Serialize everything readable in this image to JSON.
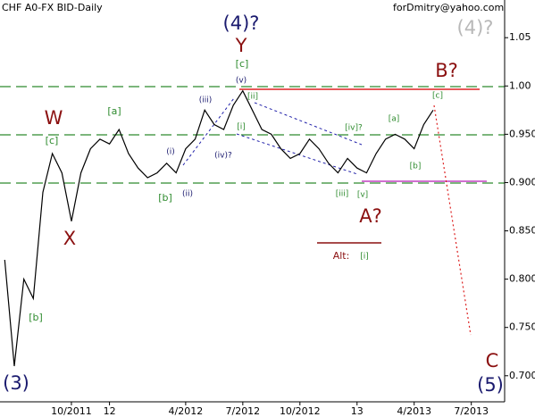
{
  "chart_data": {
    "type": "line",
    "title": "CHF A0-FX BID-Daily",
    "subtitle": "forDmitry@yahoo.com",
    "categories": [
      null,
      null,
      null,
      null,
      null,
      null,
      null,
      "10/2011",
      null,
      null,
      null,
      "12",
      null,
      null,
      null,
      null,
      null,
      null,
      null,
      "4/2012",
      null,
      null,
      null,
      null,
      null,
      "7/2012",
      null,
      null,
      null,
      null,
      null,
      "10/2012",
      null,
      null,
      null,
      null,
      null,
      "13",
      null,
      null,
      null,
      null,
      null,
      "4/2013",
      null,
      null,
      null,
      null,
      null,
      "7/2013",
      null,
      null,
      null
    ],
    "series": [
      {
        "name": "CHF A0-FX BID",
        "color": "#000000",
        "values": [
          0.82,
          0.71,
          0.8,
          0.78,
          0.89,
          0.93,
          0.91,
          0.86,
          0.91,
          0.935,
          0.945,
          0.94,
          0.955,
          0.93,
          0.915,
          0.905,
          0.91,
          0.92,
          0.91,
          0.935,
          0.945,
          0.975,
          0.96,
          0.955,
          0.98,
          0.995,
          0.975,
          0.955,
          0.95,
          0.935,
          0.925,
          0.93,
          0.945,
          0.935,
          0.92,
          0.91,
          0.925,
          0.915,
          0.91,
          0.93,
          0.945,
          0.95,
          0.945,
          0.935,
          0.96,
          0.975,
          null,
          null,
          null,
          null,
          null,
          null,
          null
        ]
      }
    ],
    "ylim": [
      0.673,
      1.089
    ],
    "yticks": [
      1.05,
      {
        "value": 1,
        "label": "1.00"
      },
      {
        "value": 0.95,
        "label": "0.950"
      },
      {
        "value": 0.9,
        "label": "0.900"
      },
      {
        "value": 0.85,
        "label": "0.850"
      },
      {
        "value": 0.8,
        "label": "0.800"
      },
      {
        "value": 0.75,
        "label": "0.750"
      },
      {
        "value": 0.7,
        "label": "0.700"
      }
    ],
    "grid": false,
    "annotations": [
      "(4)?",
      "Y",
      "[c]",
      "(v)",
      "B?",
      "[c]",
      "(4)?",
      "W",
      "[c]",
      "[a]",
      "[b]",
      "X",
      "[b]",
      "(ii)",
      "(i)",
      "(iii)",
      "(iv)?",
      "[i]",
      "[ii]",
      "[iv]?",
      "[a]",
      "[b]",
      "[iii]",
      "[v]",
      "A?",
      "Alt:",
      "[i]",
      "(3)",
      "C",
      "(5)"
    ]
  }
}
